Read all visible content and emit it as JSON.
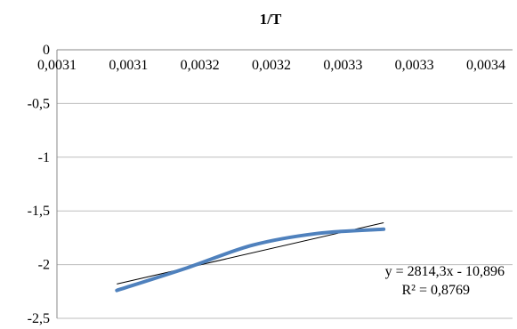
{
  "chart_data": {
    "type": "scatter",
    "title": "1/T",
    "xlabel": "",
    "ylabel": "",
    "x_tick_labels": [
      "0,0031",
      "0,0031",
      "0,0032",
      "0,0032",
      "0,0033",
      "0,0033",
      "0,0034"
    ],
    "xlim": [
      0.00305,
      0.0034
    ],
    "y_ticks": [
      0,
      -0.5,
      -1,
      -1.5,
      -2,
      -2.5
    ],
    "y_tick_labels": [
      "0",
      "-0,5",
      "-1",
      "-1,5",
      "-2",
      "-2,5"
    ],
    "ylim": [
      -2.5,
      0
    ],
    "grid": true,
    "series": [
      {
        "color": "#4f81bd",
        "style": "smooth-line",
        "x": [
          0.003096,
          0.00315,
          0.0032,
          0.00325,
          0.003301
        ],
        "y": [
          -2.24,
          -2.03,
          -1.82,
          -1.71,
          -1.67
        ]
      }
    ],
    "trendline": {
      "color": "#000000",
      "style": "linear",
      "x": [
        0.003096,
        0.003301
      ],
      "y": [
        -2.18,
        -1.61
      ],
      "equation": "y = 2814,3x - 10,896",
      "r_squared": "R² = 0,8769"
    }
  }
}
